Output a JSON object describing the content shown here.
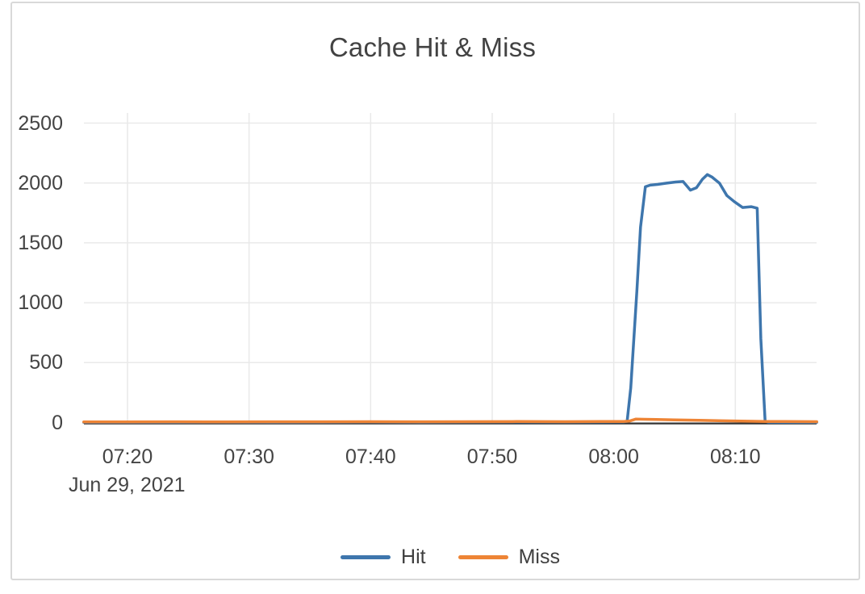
{
  "chart_data": {
    "type": "line",
    "title": "Cache Hit & Miss",
    "x_axis": {
      "date_label": "Jun 29, 2021",
      "tick_labels": [
        "07:20",
        "07:30",
        "07:40",
        "07:50",
        "08:00",
        "08:10"
      ],
      "tick_minutes_after_0700": [
        20,
        30,
        40,
        50,
        60,
        70
      ],
      "range_minutes_after_0700": [
        16.4,
        76.7
      ]
    },
    "y_axis": {
      "tick_labels": [
        "2500",
        "2000",
        "1500",
        "1000",
        "500",
        "0"
      ],
      "tick_values": [
        2500,
        2000,
        1500,
        1000,
        500,
        0
      ],
      "range": [
        0,
        2650
      ]
    },
    "grid": true,
    "legend": {
      "position": "bottom-center",
      "items": [
        {
          "name": "Hit",
          "color": "#3e76ad"
        },
        {
          "name": "Miss",
          "color": "#ee8435"
        }
      ]
    },
    "colors": {
      "grid": "#e9e9e9",
      "zero_line": "#3b3b3b",
      "text": "#444444",
      "card_border": "#d9d9d9"
    },
    "series": [
      {
        "name": "Hit",
        "color": "#3e76ad",
        "points_minutes_value": [
          [
            16.4,
            2
          ],
          [
            20,
            2
          ],
          [
            24,
            2
          ],
          [
            28,
            3
          ],
          [
            32,
            2
          ],
          [
            36,
            3
          ],
          [
            40,
            4
          ],
          [
            44,
            3
          ],
          [
            48,
            4
          ],
          [
            52,
            5
          ],
          [
            56,
            4
          ],
          [
            59,
            5
          ],
          [
            60.8,
            6
          ],
          [
            61.1,
            10
          ],
          [
            61.4,
            290
          ],
          [
            61.9,
            1100
          ],
          [
            62.2,
            1630
          ],
          [
            62.6,
            1968
          ],
          [
            63.0,
            1982
          ],
          [
            63.6,
            1988
          ],
          [
            64.3,
            1998
          ],
          [
            65.1,
            2008
          ],
          [
            65.7,
            2012
          ],
          [
            66.3,
            1940
          ],
          [
            66.8,
            1960
          ],
          [
            67.3,
            2032
          ],
          [
            67.7,
            2070
          ],
          [
            68.1,
            2048
          ],
          [
            68.7,
            1998
          ],
          [
            69.3,
            1895
          ],
          [
            69.9,
            1845
          ],
          [
            70.6,
            1795
          ],
          [
            71.3,
            1802
          ],
          [
            71.8,
            1790
          ],
          [
            72.1,
            700
          ],
          [
            72.45,
            12
          ],
          [
            72.7,
            3
          ],
          [
            74,
            2
          ],
          [
            76.7,
            2
          ]
        ]
      },
      {
        "name": "Miss",
        "color": "#ee8435",
        "points_minutes_value": [
          [
            16.4,
            5
          ],
          [
            20,
            5
          ],
          [
            24,
            6
          ],
          [
            28,
            5
          ],
          [
            32,
            6
          ],
          [
            36,
            6
          ],
          [
            40,
            7
          ],
          [
            44,
            6
          ],
          [
            48,
            7
          ],
          [
            52,
            8
          ],
          [
            56,
            7
          ],
          [
            59,
            8
          ],
          [
            60.8,
            8
          ],
          [
            61.3,
            12
          ],
          [
            61.8,
            28
          ],
          [
            62.5,
            27
          ],
          [
            63.5,
            25
          ],
          [
            65,
            22
          ],
          [
            67,
            18
          ],
          [
            69,
            14
          ],
          [
            71,
            11
          ],
          [
            72.5,
            9
          ],
          [
            74,
            8
          ],
          [
            76.7,
            7
          ]
        ]
      }
    ]
  }
}
